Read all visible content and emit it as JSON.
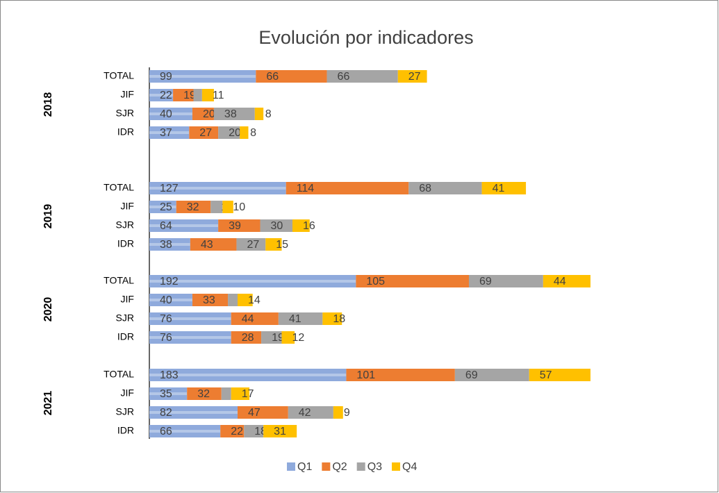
{
  "chart_data": {
    "type": "stacked-barh",
    "title": "Evolución por indicadores",
    "groups": [
      "2018",
      "2019",
      "2020",
      "2021"
    ],
    "categories": [
      "TOTAL",
      "JIF",
      "SJR",
      "IDR",
      "TOTAL",
      "JIF",
      "SJR",
      "IDR",
      "TOTAL",
      "JIF",
      "SJR",
      "IDR",
      "TOTAL",
      "JIF",
      "SJR",
      "IDR"
    ],
    "series": [
      {
        "name": "Q1",
        "color": "#8faadc",
        "values": [
          99,
          22,
          40,
          37,
          127,
          25,
          64,
          38,
          192,
          40,
          76,
          76,
          183,
          35,
          82,
          66
        ]
      },
      {
        "name": "Q2",
        "color": "#ed7d31",
        "values": [
          66,
          19,
          20,
          27,
          114,
          32,
          39,
          43,
          105,
          33,
          44,
          28,
          101,
          32,
          47,
          22
        ]
      },
      {
        "name": "Q3",
        "color": "#a5a5a5",
        "values": [
          66,
          8,
          38,
          20,
          68,
          11,
          30,
          27,
          69,
          9,
          41,
          19,
          69,
          9,
          42,
          18
        ]
      },
      {
        "name": "Q4",
        "color": "#ffc000",
        "values": [
          27,
          11,
          8,
          8,
          41,
          10,
          16,
          15,
          44,
          14,
          18,
          12,
          57,
          17,
          9,
          31
        ]
      }
    ],
    "legend": "bottom"
  }
}
